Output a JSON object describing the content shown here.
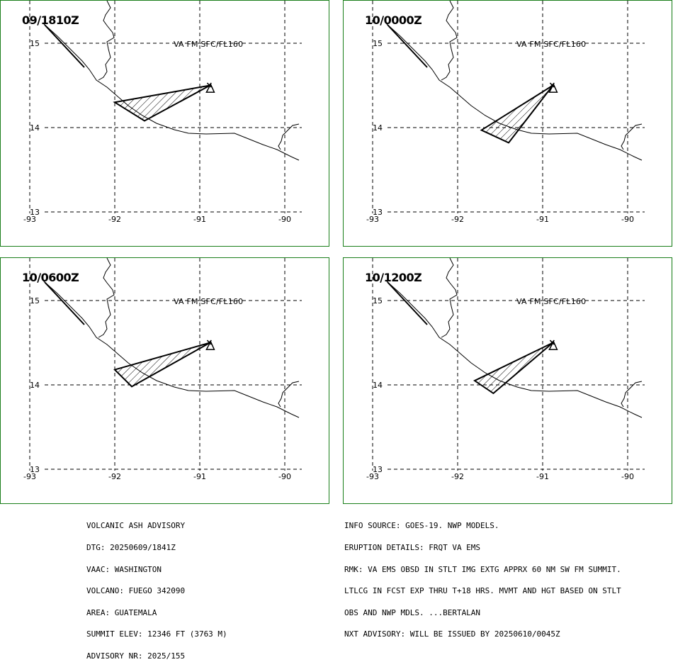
{
  "map_common": {
    "level": "VA FM SFC/FL160",
    "lat_labels": [
      "15",
      "14",
      "13"
    ],
    "lon_labels": [
      "-93",
      "-92",
      "-91",
      "-90"
    ],
    "grid_lon": [
      -93,
      -92,
      -91,
      -90
    ],
    "grid_lat": [
      15,
      14,
      13
    ],
    "volcano": {
      "lat": 14.47,
      "lon": -90.88
    }
  },
  "panels": [
    {
      "time": "09/1810Z",
      "ash_polygon": [
        [
          14.5,
          -90.88
        ],
        [
          14.3,
          -92.0
        ],
        [
          14.08,
          -91.65
        ]
      ]
    },
    {
      "time": "10/0000Z",
      "ash_polygon": [
        [
          14.5,
          -90.88
        ],
        [
          13.97,
          -91.72
        ],
        [
          13.82,
          -91.4
        ]
      ]
    },
    {
      "time": "10/0600Z",
      "ash_polygon": [
        [
          14.5,
          -90.88
        ],
        [
          14.18,
          -92.0
        ],
        [
          13.98,
          -91.8
        ]
      ]
    },
    {
      "time": "10/1200Z",
      "ash_polygon": [
        [
          14.5,
          -90.88
        ],
        [
          14.05,
          -91.8
        ],
        [
          13.9,
          -91.58
        ]
      ]
    }
  ],
  "advisory": {
    "left_lines": [
      "VOLCANIC ASH ADVISORY",
      "DTG: 20250609/1841Z",
      "VAAC: WASHINGTON",
      "VOLCANO: FUEGO 342090",
      "AREA: GUATEMALA",
      "SUMMIT ELEV: 12346 FT (3763 M)",
      "ADVISORY NR: 2025/155"
    ],
    "right_lines": [
      "INFO SOURCE: GOES-19. NWP MODELS.",
      "ERUPTION DETAILS: FRQT VA EMS",
      "RMK: VA EMS OBSD IN STLT IMG EXTG APPRX 60 NM SW FM SUMMIT.",
      "LTLCG IN FCST EXP THRU T+18 HRS. MVMT AND HGT BASED ON STLT",
      "OBS AND NWP MDLS. ...BERTALAN",
      "NXT ADVISORY: WILL BE ISSUED BY 20250610/0045Z"
    ]
  }
}
